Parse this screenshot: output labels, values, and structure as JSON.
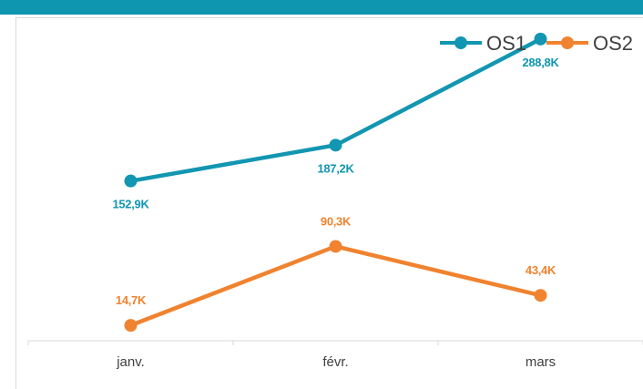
{
  "chart_data": {
    "type": "line",
    "categories": [
      "janv.",
      "févr.",
      "mars"
    ],
    "series": [
      {
        "name": "OS1",
        "color": "#1296b1",
        "values": [
          152.9,
          187.2,
          288.8
        ],
        "labels": [
          "152,9K",
          "187,2K",
          "288,8K"
        ]
      },
      {
        "name": "OS2",
        "color": "#f0832f",
        "values": [
          14.7,
          90.3,
          43.4
        ],
        "labels": [
          "14,7K",
          "90,3K",
          "43,4K"
        ]
      }
    ],
    "ylim": [
      0,
      300
    ],
    "title": "",
    "xlabel": "",
    "ylabel": "",
    "grid": false,
    "legend": "top-right"
  }
}
